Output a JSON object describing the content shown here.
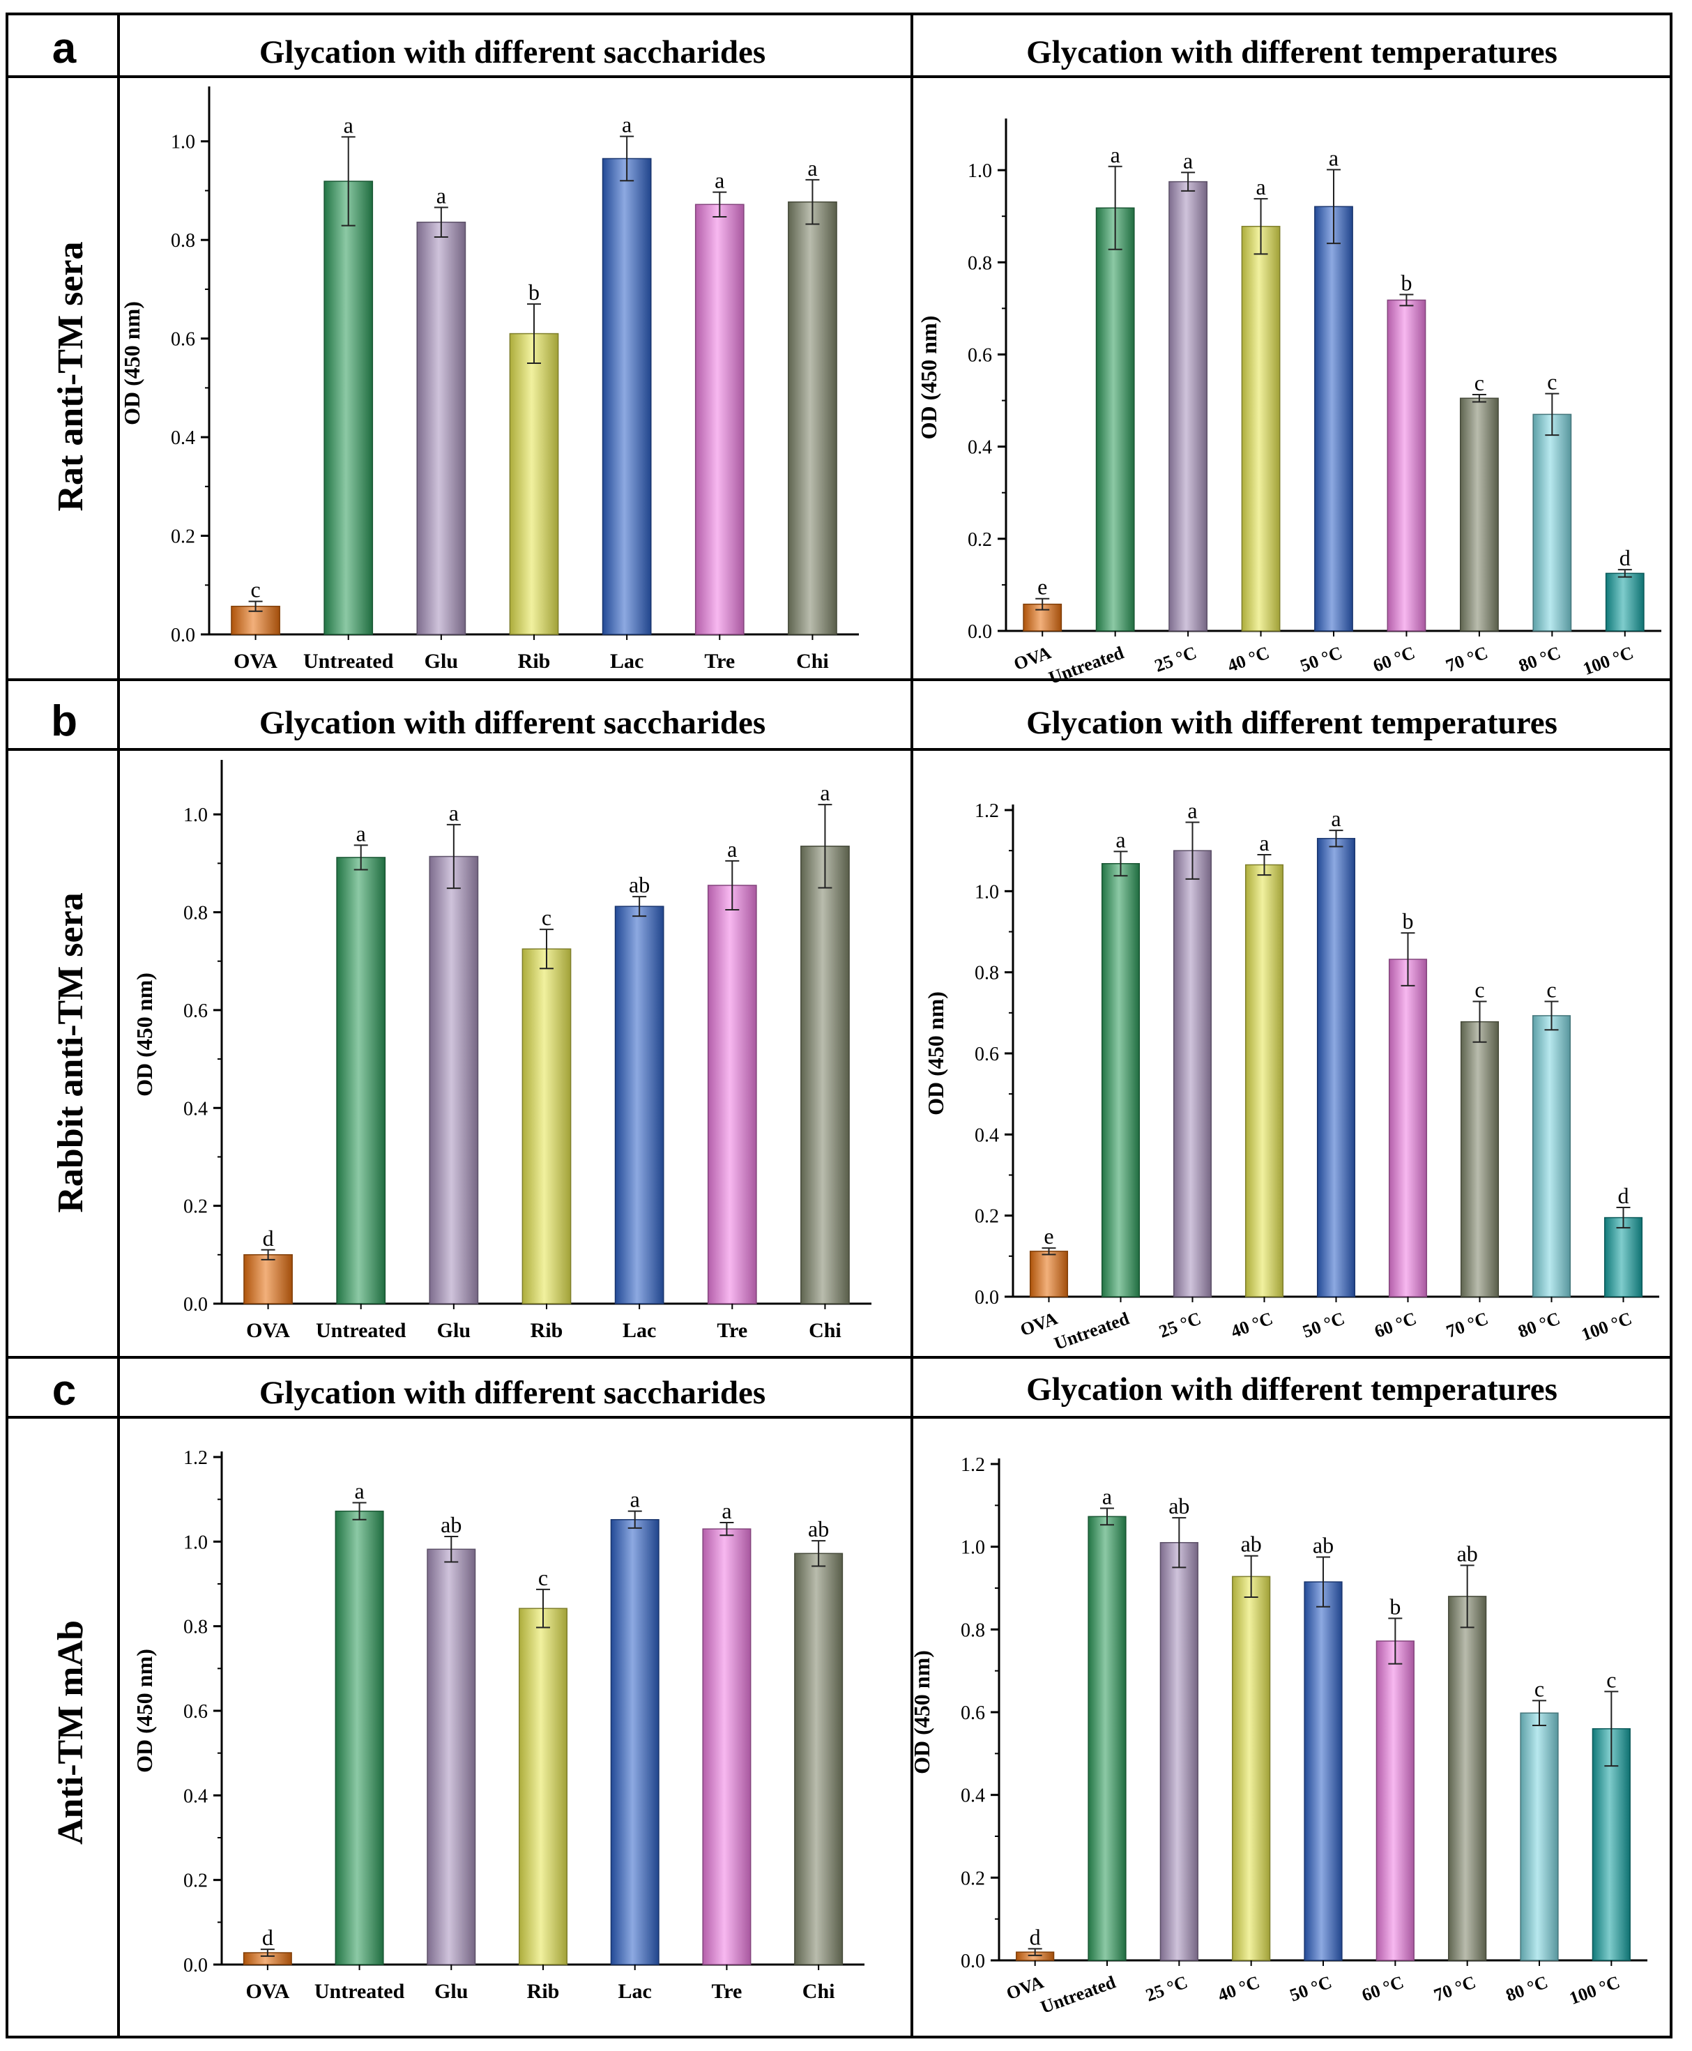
{
  "figure": {
    "rows": [
      {
        "letter": "a",
        "label": "Rat anti-TM sera"
      },
      {
        "letter": "b",
        "label": "Rabbit anti-TM sera"
      },
      {
        "letter": "c",
        "label": "Anti-TM mAb"
      }
    ],
    "header_left": "Glycation with different saccharides",
    "header_right": "Glycation with different temperatures"
  },
  "colors": {
    "OVA": "#e8700f",
    "Untreated": "#2e9c5c",
    "Glu": "#a891bd",
    "25 °C": "#a891bd",
    "Rib": "#e6e650",
    "40 °C": "#e6e650",
    "Lac": "#2f62c8",
    "50 °C": "#2f62c8",
    "Tre": "#f07ee3",
    "60 °C": "#f07ee3",
    "Chi": "#7f866a",
    "70 °C": "#7f866a",
    "80 °C": "#7ed6e0",
    "100 °C": "#16a3a3"
  },
  "chart_data": [
    {
      "id": "a-sacch",
      "type": "bar",
      "row": "a",
      "title": "Glycation with different saccharides",
      "xlabel": "",
      "ylabel": "OD (450 nm)",
      "ylim": [
        0,
        1.1
      ],
      "yticks": [
        0.0,
        0.2,
        0.4,
        0.6,
        0.8,
        1.0
      ],
      "ydec": 1,
      "categories": [
        "OVA",
        "Untreated",
        "Glu",
        "Rib",
        "Lac",
        "Tre",
        "Chi"
      ],
      "values": [
        0.057,
        0.919,
        0.836,
        0.61,
        0.965,
        0.872,
        0.877
      ],
      "errors": [
        0.01,
        0.09,
        0.03,
        0.06,
        0.045,
        0.025,
        0.045
      ],
      "letters": [
        "c",
        "a",
        "a",
        "b",
        "a",
        "a",
        "a"
      ]
    },
    {
      "id": "a-temp",
      "type": "bar",
      "row": "a",
      "title": "Glycation with different temperatures",
      "xlabel": "",
      "ylabel": "OD (450 nm)",
      "ylim": [
        0,
        1.1
      ],
      "yticks": [
        0.0,
        0.2,
        0.4,
        0.6,
        0.8,
        1.0
      ],
      "ydec": 1,
      "categories": [
        "OVA",
        "Untreated",
        "25 °C",
        "40 °C",
        "50 °C",
        "60 °C",
        "70 °C",
        "80 °C",
        "100 °C"
      ],
      "values": [
        0.058,
        0.918,
        0.975,
        0.878,
        0.921,
        0.718,
        0.505,
        0.47,
        0.125
      ],
      "errors": [
        0.012,
        0.09,
        0.02,
        0.06,
        0.08,
        0.012,
        0.008,
        0.045,
        0.008
      ],
      "letters": [
        "e",
        "a",
        "a",
        "a",
        "a",
        "b",
        "c",
        "c",
        "d"
      ]
    },
    {
      "id": "b-sacch",
      "type": "bar",
      "row": "b",
      "title": "Glycation with different saccharides",
      "xlabel": "",
      "ylabel": "OD (450 nm)",
      "ylim": [
        0,
        1.1
      ],
      "yticks": [
        0.0,
        0.2,
        0.4,
        0.6,
        0.8,
        1.0
      ],
      "ydec": 1,
      "categories": [
        "OVA",
        "Untreated",
        "Glu",
        "Rib",
        "Lac",
        "Tre",
        "Chi"
      ],
      "values": [
        0.1,
        0.912,
        0.914,
        0.725,
        0.812,
        0.855,
        0.935
      ],
      "errors": [
        0.01,
        0.025,
        0.065,
        0.04,
        0.02,
        0.05,
        0.085
      ],
      "letters": [
        "d",
        "a",
        "a",
        "c",
        "ab",
        "a",
        "a"
      ]
    },
    {
      "id": "b-temp",
      "type": "bar",
      "row": "b",
      "title": "Glycation with different temperatures",
      "xlabel": "",
      "ylabel": "OD (450 nm)",
      "ylim": [
        0,
        1.2
      ],
      "yticks": [
        0.0,
        0.2,
        0.4,
        0.6,
        0.8,
        1.0,
        1.2
      ],
      "ydec": 1,
      "categories": [
        "OVA",
        "Untreated",
        "25 °C",
        "40 °C",
        "50 °C",
        "60 °C",
        "70 °C",
        "80 °C",
        "100 °C"
      ],
      "values": [
        0.112,
        1.068,
        1.1,
        1.065,
        1.13,
        0.832,
        0.678,
        0.693,
        0.195
      ],
      "errors": [
        0.008,
        0.03,
        0.07,
        0.025,
        0.02,
        0.065,
        0.05,
        0.035,
        0.025
      ],
      "letters": [
        "e",
        "a",
        "a",
        "a",
        "a",
        "b",
        "c",
        "c",
        "d"
      ]
    },
    {
      "id": "c-sacch",
      "type": "bar",
      "row": "c",
      "title": "Glycation with different saccharides",
      "xlabel": "",
      "ylabel": "OD (450 nm)",
      "ylim": [
        0,
        1.2
      ],
      "yticks": [
        0.0,
        0.2,
        0.4,
        0.6,
        0.8,
        1.0,
        1.2
      ],
      "ydec": 1,
      "categories": [
        "OVA",
        "Untreated",
        "Glu",
        "Rib",
        "Lac",
        "Tre",
        "Chi"
      ],
      "values": [
        0.028,
        1.072,
        0.982,
        0.842,
        1.052,
        1.03,
        0.972
      ],
      "errors": [
        0.008,
        0.02,
        0.03,
        0.045,
        0.02,
        0.015,
        0.03
      ],
      "letters": [
        "d",
        "a",
        "ab",
        "c",
        "a",
        "a",
        "ab"
      ]
    },
    {
      "id": "c-temp",
      "type": "bar",
      "row": "c",
      "title": "Glycation with different temperatures",
      "xlabel": "",
      "ylabel": "OD (450 nm)",
      "ylim": [
        0,
        1.2
      ],
      "yticks": [
        0.0,
        0.2,
        0.4,
        0.6,
        0.8,
        1.0,
        1.2
      ],
      "ydec": 1,
      "categories": [
        "OVA",
        "Untreated",
        "25 °C",
        "40 °C",
        "50 °C",
        "60 °C",
        "70 °C",
        "80 °C",
        "100 °C"
      ],
      "values": [
        0.02,
        1.073,
        1.01,
        0.928,
        0.915,
        0.772,
        0.88,
        0.598,
        0.56
      ],
      "errors": [
        0.008,
        0.02,
        0.06,
        0.05,
        0.06,
        0.055,
        0.075,
        0.03,
        0.09
      ],
      "letters": [
        "d",
        "a",
        "ab",
        "ab",
        "ab",
        "b",
        "ab",
        "c",
        "c"
      ]
    }
  ]
}
